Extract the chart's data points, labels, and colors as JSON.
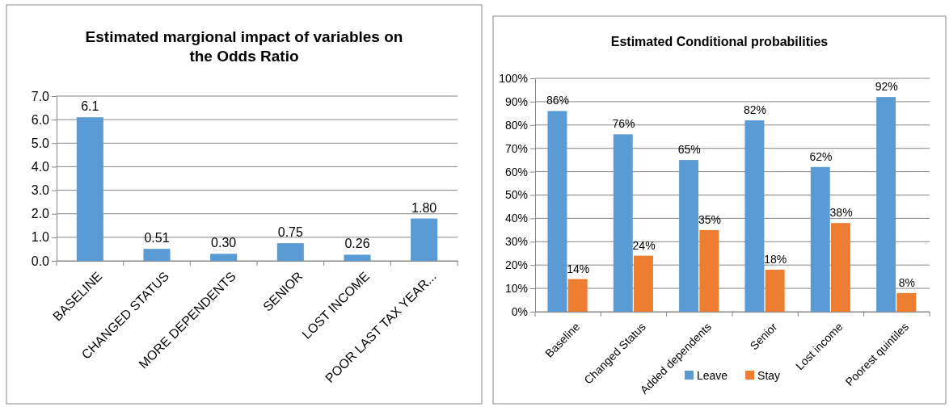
{
  "chart_data": [
    {
      "type": "bar",
      "title": "Estimated margional impact of variables on the Odds Ratio",
      "categories": [
        "BASELINE",
        "CHANGED STATUS",
        "MORE DEPENDENTS",
        "SENIOR",
        "LOST INCOME",
        "POOR LAST TAX YEAR..."
      ],
      "series": [
        {
          "color": "#5b9bd5",
          "values": [
            6.1,
            0.51,
            0.3,
            0.75,
            0.26,
            1.8
          ],
          "value_labels": [
            "6.1",
            "0.51",
            "0.30",
            "0.75",
            "0.26",
            "1.80"
          ]
        }
      ],
      "ylim": [
        0,
        7
      ],
      "yticks": [
        {
          "value": 0,
          "label": "0.0"
        },
        {
          "value": 1,
          "label": "1.0"
        },
        {
          "value": 2,
          "label": "2.0"
        },
        {
          "value": 3,
          "label": "3.0"
        },
        {
          "value": 4,
          "label": "4.0"
        },
        {
          "value": 5,
          "label": "5.0"
        },
        {
          "value": 6,
          "label": "6.0"
        },
        {
          "value": 7,
          "label": "7.0"
        }
      ],
      "grid": "y",
      "legend": false
    },
    {
      "type": "bar",
      "title": "Estimated Conditional probabilities",
      "categories": [
        "Baseline",
        "Changed Status",
        "Added dependents",
        "Senior",
        "Lost income",
        "Poorest quintiles"
      ],
      "series": [
        {
          "name": "Leave",
          "color": "#5b9bd5",
          "values": [
            86,
            76,
            65,
            82,
            62,
            92
          ],
          "value_labels": [
            "86%",
            "76%",
            "65%",
            "82%",
            "62%",
            "92%"
          ]
        },
        {
          "name": "Stay",
          "color": "#ed7d31",
          "values": [
            14,
            24,
            35,
            18,
            38,
            8
          ],
          "value_labels": [
            "14%",
            "24%",
            "35%",
            "18%",
            "38%",
            "8%"
          ]
        }
      ],
      "ylim": [
        0,
        100
      ],
      "yticks": [
        {
          "value": 0,
          "label": "0%"
        },
        {
          "value": 10,
          "label": "10%"
        },
        {
          "value": 20,
          "label": "20%"
        },
        {
          "value": 30,
          "label": "30%"
        },
        {
          "value": 40,
          "label": "40%"
        },
        {
          "value": 50,
          "label": "50%"
        },
        {
          "value": 60,
          "label": "60%"
        },
        {
          "value": 70,
          "label": "70%"
        },
        {
          "value": 80,
          "label": "80%"
        },
        {
          "value": 90,
          "label": "90%"
        },
        {
          "value": 100,
          "label": "100%"
        }
      ],
      "grid": "y",
      "legend": "bottom"
    }
  ]
}
